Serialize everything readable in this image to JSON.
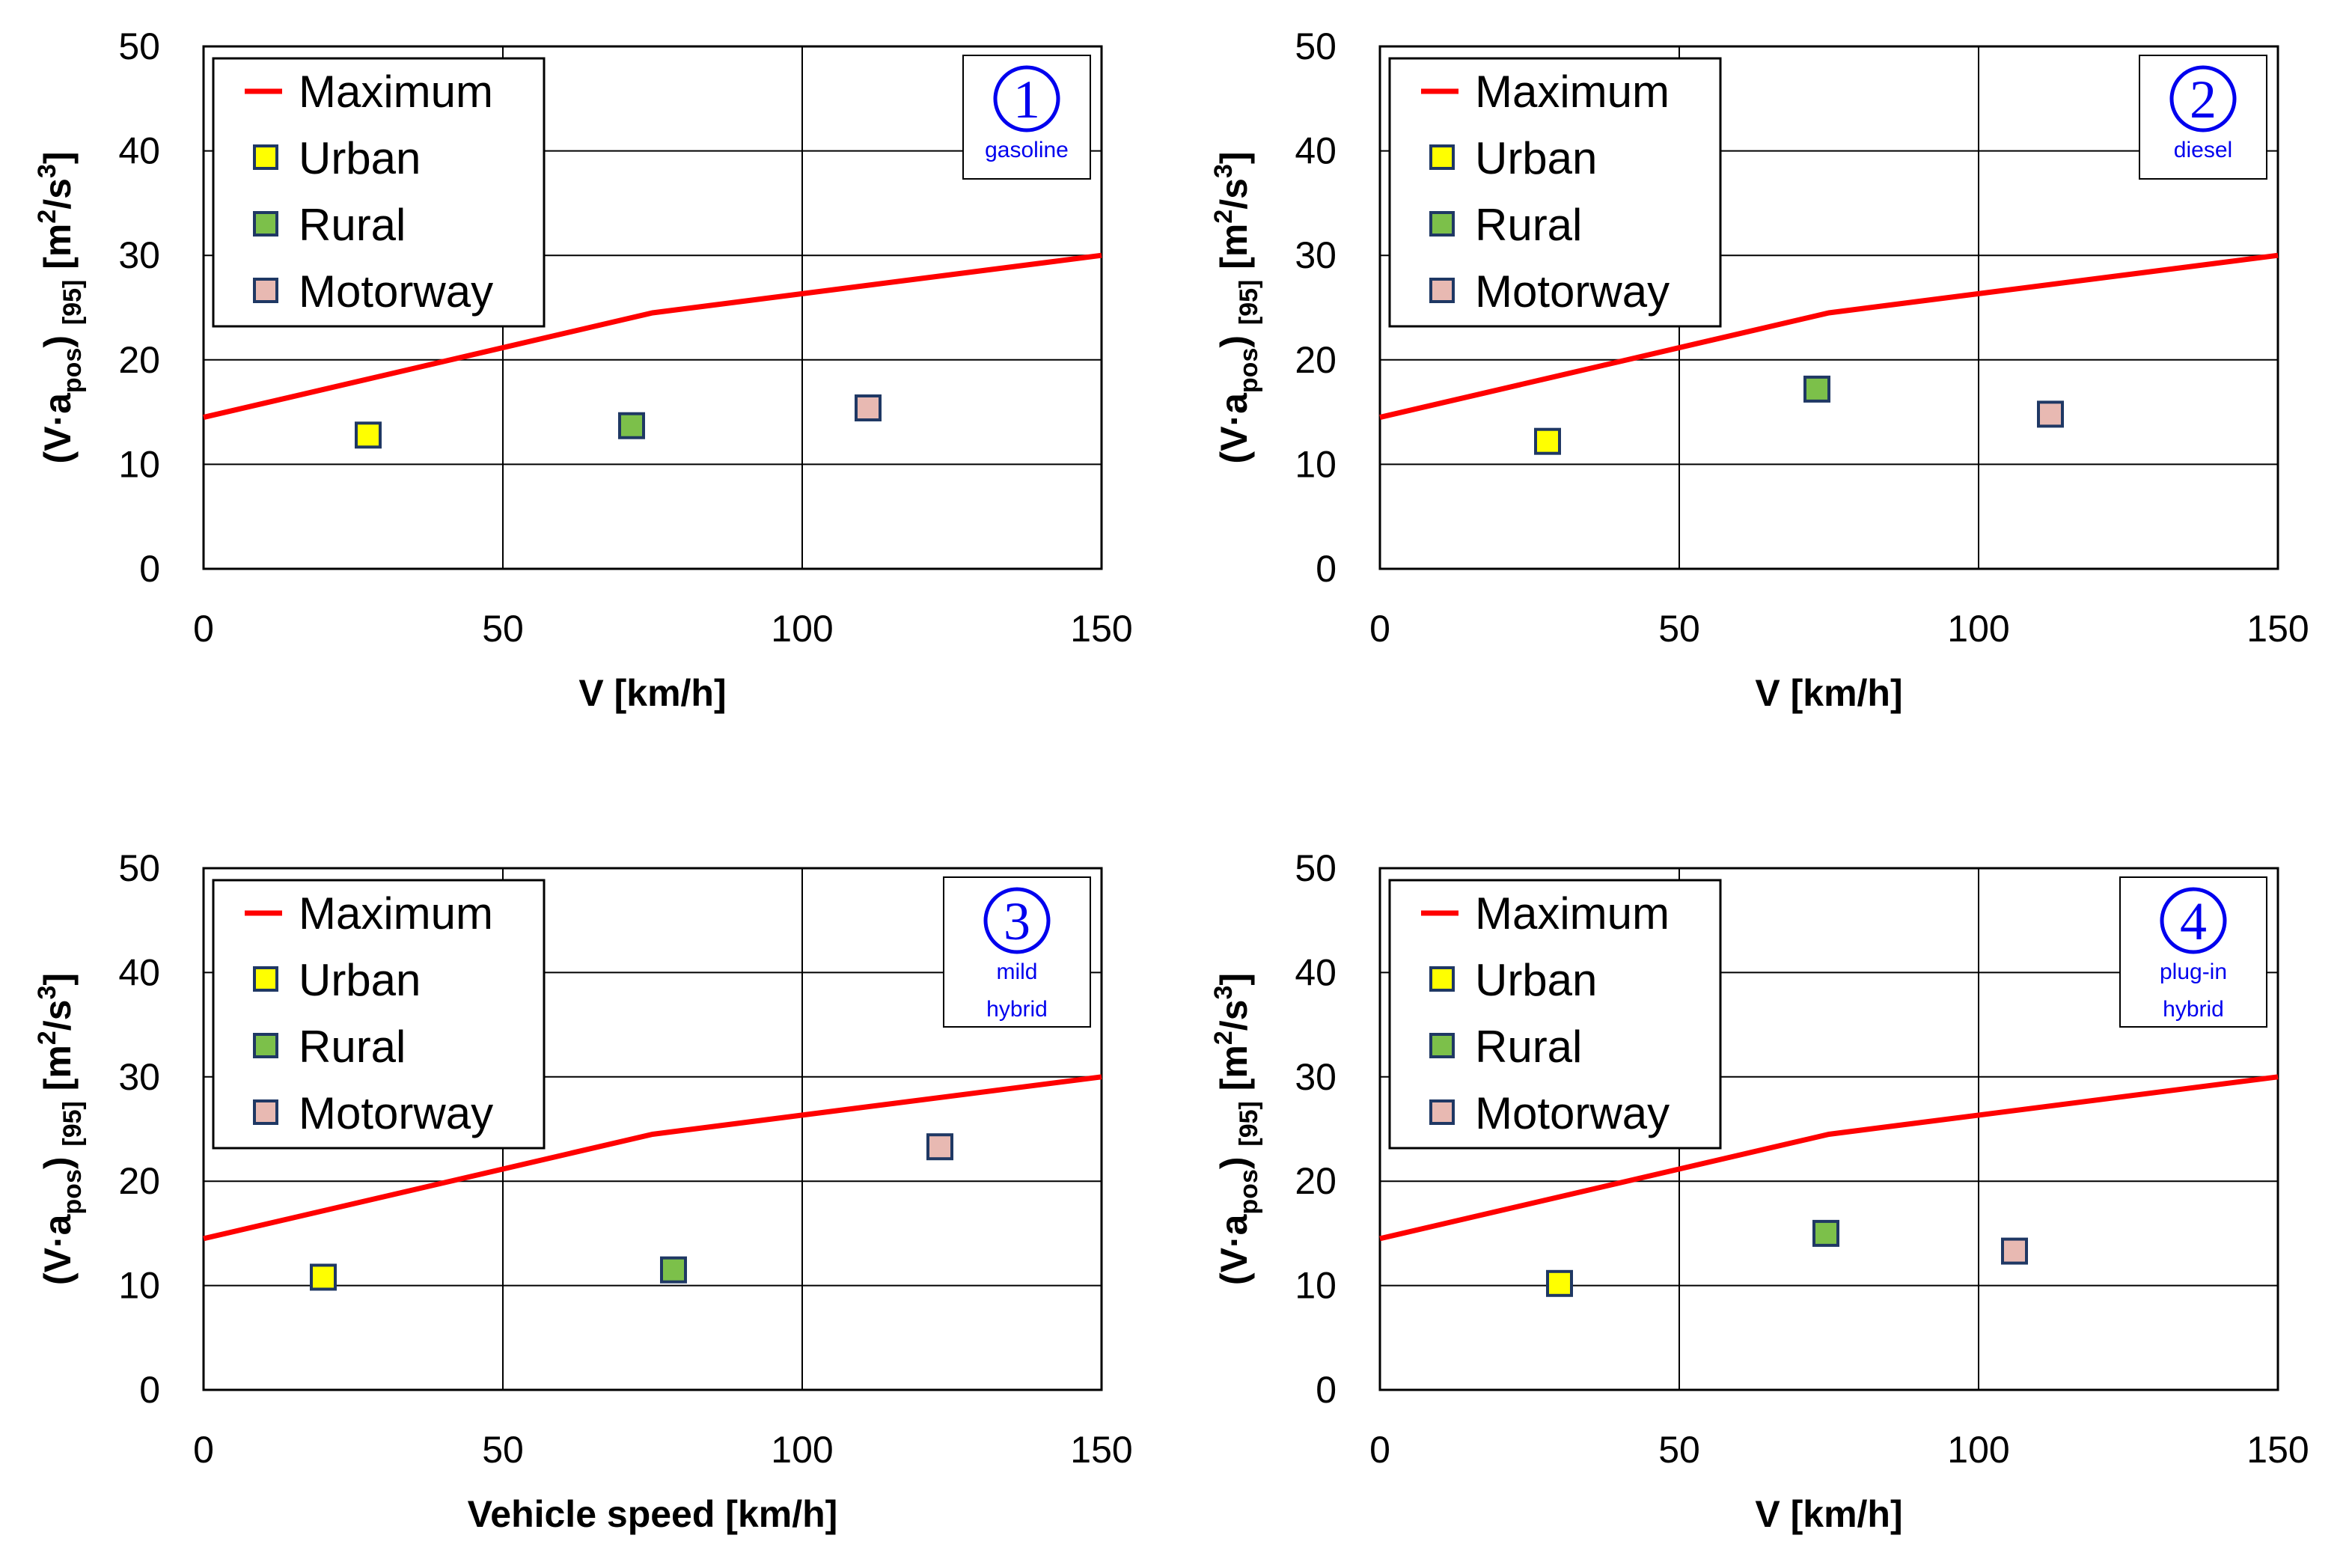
{
  "colors": {
    "maximum": "#ff0000",
    "urban": "#ffff00",
    "rural": "#7cc04a",
    "motorway": "#e8b9b2",
    "marker_edge": "#1f3864",
    "annotation": "#0000ee",
    "grid": "#000000"
  },
  "legend_labels": [
    "Maximum",
    "Urban",
    "Rural",
    "Motorway"
  ],
  "chart_data": [
    {
      "type": "scatter",
      "title": "",
      "xlabel": "V [km/h]",
      "ylabel": "(V·apos) [95] [m2/s3]",
      "xlim": [
        0,
        150
      ],
      "ylim": [
        0,
        50
      ],
      "xticks": [
        "0",
        "50",
        "100",
        "150"
      ],
      "yticks": [
        "0",
        "10",
        "20",
        "30",
        "40",
        "50"
      ],
      "annotation": {
        "number": "1",
        "lines": [
          "gasoline"
        ]
      },
      "maximum": {
        "x": [
          0,
          75,
          150
        ],
        "y": [
          14.5,
          24.5,
          30
        ]
      },
      "series": [
        {
          "name": "Urban",
          "x": [
            27.5
          ],
          "y": [
            12.8
          ]
        },
        {
          "name": "Rural",
          "x": [
            71.5
          ],
          "y": [
            13.7
          ]
        },
        {
          "name": "Motorway",
          "x": [
            111
          ],
          "y": [
            15.4
          ]
        }
      ]
    },
    {
      "type": "scatter",
      "title": "",
      "xlabel": "V [km/h]",
      "ylabel": "(V·apos) [95] [m2/s3]",
      "xlim": [
        0,
        150
      ],
      "ylim": [
        0,
        50
      ],
      "xticks": [
        "0",
        "50",
        "100",
        "150"
      ],
      "yticks": [
        "0",
        "10",
        "20",
        "30",
        "40",
        "50"
      ],
      "annotation": {
        "number": "2",
        "lines": [
          "diesel"
        ]
      },
      "maximum": {
        "x": [
          0,
          75,
          150
        ],
        "y": [
          14.5,
          24.5,
          30
        ]
      },
      "series": [
        {
          "name": "Urban",
          "x": [
            28
          ],
          "y": [
            12.2
          ]
        },
        {
          "name": "Rural",
          "x": [
            73
          ],
          "y": [
            17.2
          ]
        },
        {
          "name": "Motorway",
          "x": [
            112
          ],
          "y": [
            14.8
          ]
        }
      ]
    },
    {
      "type": "scatter",
      "title": "",
      "xlabel": "Vehicle speed [km/h]",
      "ylabel": "(V·apos) [95] [m2/s3]",
      "xlim": [
        0,
        150
      ],
      "ylim": [
        0,
        50
      ],
      "xticks": [
        "0",
        "50",
        "100",
        "150"
      ],
      "yticks": [
        "0",
        "10",
        "20",
        "30",
        "40",
        "50"
      ],
      "annotation": {
        "number": "3",
        "lines": [
          "mild",
          "hybrid"
        ]
      },
      "maximum": {
        "x": [
          0,
          75,
          150
        ],
        "y": [
          14.5,
          24.5,
          30
        ]
      },
      "series": [
        {
          "name": "Urban",
          "x": [
            20
          ],
          "y": [
            10.8
          ]
        },
        {
          "name": "Rural",
          "x": [
            78.5
          ],
          "y": [
            11.5
          ]
        },
        {
          "name": "Motorway",
          "x": [
            123
          ],
          "y": [
            23.3
          ]
        }
      ]
    },
    {
      "type": "scatter",
      "title": "",
      "xlabel": "V [km/h]",
      "ylabel": "(V·apos) [95] [m2/s3]",
      "xlim": [
        0,
        150
      ],
      "ylim": [
        0,
        50
      ],
      "xticks": [
        "0",
        "50",
        "100",
        "150"
      ],
      "yticks": [
        "0",
        "10",
        "20",
        "30",
        "40",
        "50"
      ],
      "annotation": {
        "number": "4",
        "lines": [
          "plug-in",
          "hybrid"
        ]
      },
      "maximum": {
        "x": [
          0,
          75,
          150
        ],
        "y": [
          14.5,
          24.5,
          30
        ]
      },
      "series": [
        {
          "name": "Urban",
          "x": [
            30
          ],
          "y": [
            10.2
          ]
        },
        {
          "name": "Rural",
          "x": [
            74.5
          ],
          "y": [
            15
          ]
        },
        {
          "name": "Motorway",
          "x": [
            106
          ],
          "y": [
            13.3
          ]
        }
      ]
    }
  ]
}
